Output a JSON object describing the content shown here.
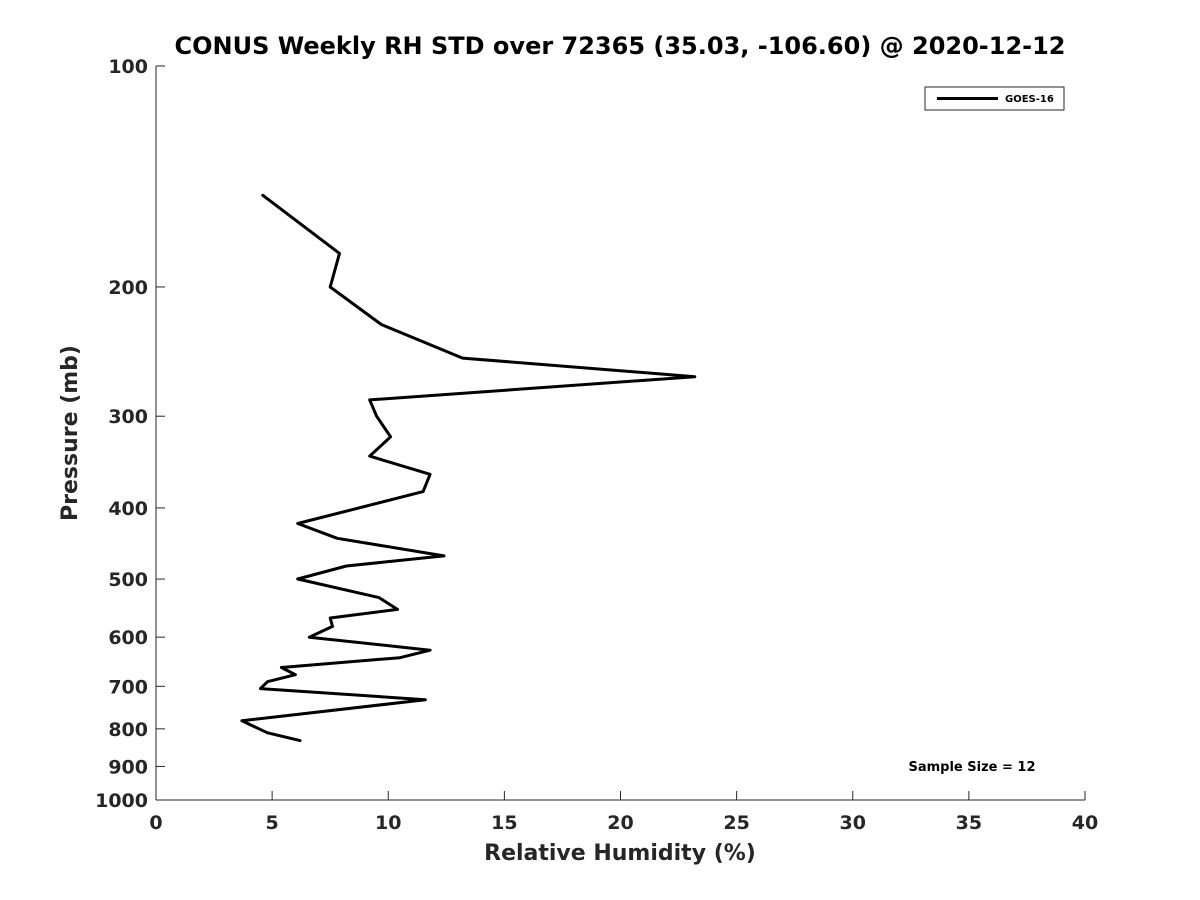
{
  "chart_data": {
    "type": "line",
    "title": "CONUS Weekly RH STD over 72365 (35.03, -106.60) @ 2020-12-12",
    "xlabel": "Relative Humidity (%)",
    "ylabel": "Pressure (mb)",
    "xlim": [
      0,
      40
    ],
    "ylim": [
      100,
      1000
    ],
    "y_scale": "log",
    "y_reversed": true,
    "x_ticks": [
      "0",
      "5",
      "10",
      "15",
      "20",
      "25",
      "30",
      "35",
      "40"
    ],
    "y_ticks": [
      "100",
      "200",
      "300",
      "400",
      "500",
      "600",
      "700",
      "800",
      "900",
      "1000"
    ],
    "grid": false,
    "legend_position": "top-right",
    "series": [
      {
        "name": "GOES-16",
        "color": "#000000",
        "points": [
          {
            "x": 4.6,
            "y": 150
          },
          {
            "x": 7.9,
            "y": 180
          },
          {
            "x": 7.5,
            "y": 200
          },
          {
            "x": 9.7,
            "y": 225
          },
          {
            "x": 13.2,
            "y": 250
          },
          {
            "x": 23.2,
            "y": 265
          },
          {
            "x": 9.2,
            "y": 285
          },
          {
            "x": 9.5,
            "y": 300
          },
          {
            "x": 10.1,
            "y": 320
          },
          {
            "x": 9.2,
            "y": 340
          },
          {
            "x": 11.8,
            "y": 360
          },
          {
            "x": 11.5,
            "y": 380
          },
          {
            "x": 6.1,
            "y": 420
          },
          {
            "x": 7.8,
            "y": 440
          },
          {
            "x": 12.4,
            "y": 465
          },
          {
            "x": 8.2,
            "y": 480
          },
          {
            "x": 6.1,
            "y": 500
          },
          {
            "x": 9.6,
            "y": 530
          },
          {
            "x": 10.4,
            "y": 550
          },
          {
            "x": 7.5,
            "y": 565
          },
          {
            "x": 7.6,
            "y": 580
          },
          {
            "x": 6.6,
            "y": 600
          },
          {
            "x": 11.8,
            "y": 625
          },
          {
            "x": 10.5,
            "y": 640
          },
          {
            "x": 5.4,
            "y": 660
          },
          {
            "x": 6.0,
            "y": 675
          },
          {
            "x": 4.8,
            "y": 690
          },
          {
            "x": 4.5,
            "y": 705
          },
          {
            "x": 11.6,
            "y": 730
          },
          {
            "x": 3.7,
            "y": 780
          },
          {
            "x": 4.8,
            "y": 810
          },
          {
            "x": 6.2,
            "y": 830
          }
        ]
      }
    ],
    "annotations": [
      "Sample Size = 12"
    ]
  }
}
